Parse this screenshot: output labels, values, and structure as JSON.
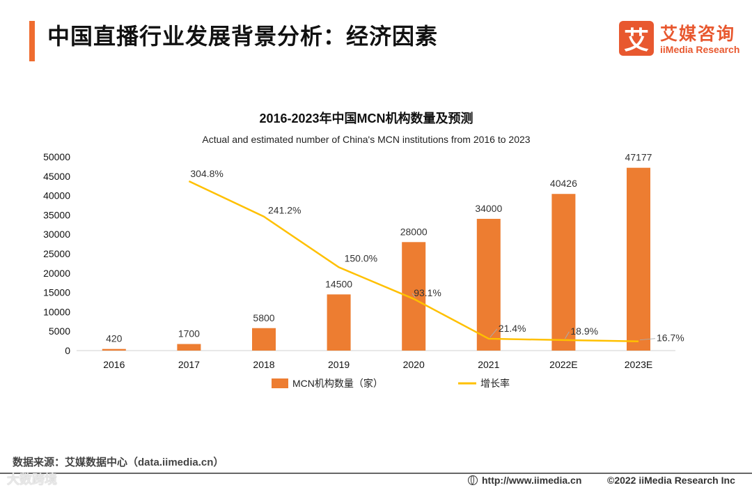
{
  "header": {
    "title": "中国直播行业发展背景分析：经济因素",
    "logo_mark": "艾",
    "logo_cn": "艾媒咨询",
    "logo_en": "iiMedia Research"
  },
  "colors": {
    "accent": "#ef6c2f",
    "bar": "#ed7d31",
    "line": "#ffc000"
  },
  "chart_data": {
    "type": "bar",
    "title": "2016-2023年中国MCN机构数量及预测",
    "subtitle": "Actual and estimated number of China's MCN institutions from 2016 to 2023",
    "categories": [
      "2016",
      "2017",
      "2018",
      "2019",
      "2020",
      "2021",
      "2022E",
      "2023E"
    ],
    "ylim": [
      0,
      50000
    ],
    "yticks": [
      "50000",
      "45000",
      "40000",
      "35000",
      "30000",
      "25000",
      "20000",
      "15000",
      "10000",
      "5000",
      "0"
    ],
    "series": [
      {
        "name": "MCN机构数量（家）",
        "type": "bar",
        "values": [
          420,
          1700,
          5800,
          14500,
          28000,
          34000,
          40426,
          47177
        ],
        "labels": [
          "420",
          "1700",
          "5800",
          "14500",
          "28000",
          "34000",
          "40426",
          "47177"
        ]
      },
      {
        "name": "增长率",
        "type": "line",
        "values": [
          null,
          304.8,
          241.2,
          150.0,
          93.1,
          21.4,
          18.9,
          16.7
        ],
        "labels": [
          "",
          "304.8%",
          "241.2%",
          "150.0%",
          "93.1%",
          "21.4%",
          "18.9%",
          "16.7%"
        ]
      }
    ],
    "legend": [
      "MCN机构数量（家）",
      "增长率"
    ],
    "legend_position": "bottom"
  },
  "footer": {
    "source": "数据来源：艾媒数据中心（data.iimedia.cn）",
    "url": "http://www.iimedia.cn",
    "copyright": "©2022  iiMedia Research  Inc",
    "watermark": "大数跨境"
  }
}
